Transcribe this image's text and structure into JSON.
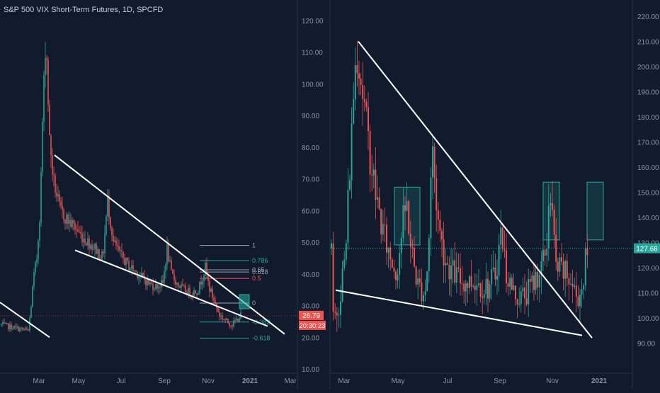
{
  "header": {
    "title": "S&P 500 VIX Short-Term Futures, 1D, SPCFD"
  },
  "colors": {
    "background": "#121b2e",
    "up": "#26a69a",
    "down": "#ef5350",
    "trendline": "#ffffff",
    "fib": "#9aa4b6",
    "fib_green": "#26a69a",
    "fib_red": "#ef5350",
    "price_line": "#26a69a",
    "axis_text": "#8a93a6",
    "label_red": "#ef5350",
    "box_fill": "rgba(38,166,154,0.18)",
    "box_border": "#26a69a"
  },
  "chart_data": [
    {
      "type": "candlestick",
      "title": "S&P 500 VIX Short-Term Futures, 1D, SPCFD",
      "x_ticks": [
        "Mar",
        "May",
        "Jul",
        "Sep",
        "Nov",
        "2021",
        "Mar"
      ],
      "y_ticks": [
        "120.00",
        "110.00",
        "100.00",
        "90.00",
        "80.00",
        "70.00",
        "60.00",
        "50.00",
        "40.00",
        "30.00",
        "20.00",
        "10.00"
      ],
      "ylim": [
        10,
        120
      ],
      "grid": false,
      "price_labels": {
        "last": "26.79",
        "countdown": "20:30:23"
      },
      "anchors": [
        [
          0,
          24
        ],
        [
          40,
          22
        ],
        [
          44,
          30
        ],
        [
          47,
          38
        ],
        [
          52,
          45
        ],
        [
          55,
          55
        ],
        [
          57,
          62
        ],
        [
          60,
          88
        ],
        [
          62,
          100
        ],
        [
          64,
          112
        ],
        [
          66,
          108
        ],
        [
          68,
          95
        ],
        [
          70,
          82
        ],
        [
          72,
          78
        ],
        [
          75,
          70
        ],
        [
          80,
          65
        ],
        [
          85,
          60
        ],
        [
          95,
          57
        ],
        [
          105,
          55
        ],
        [
          115,
          52
        ],
        [
          125,
          50
        ],
        [
          135,
          48
        ],
        [
          145,
          45
        ],
        [
          152,
          63
        ],
        [
          160,
          50
        ],
        [
          170,
          46
        ],
        [
          180,
          43
        ],
        [
          190,
          41
        ],
        [
          200,
          39
        ],
        [
          210,
          37
        ],
        [
          220,
          36
        ],
        [
          230,
          37
        ],
        [
          236,
          48
        ],
        [
          242,
          40
        ],
        [
          250,
          37
        ],
        [
          260,
          35
        ],
        [
          270,
          34
        ],
        [
          280,
          35
        ],
        [
          290,
          42
        ],
        [
          295,
          36
        ],
        [
          300,
          33
        ],
        [
          305,
          30
        ],
        [
          310,
          27
        ],
        [
          320,
          25
        ],
        [
          328,
          24
        ],
        [
          336,
          26
        ],
        [
          340,
          27
        ]
      ],
      "fib_levels": [
        {
          "label": "1",
          "value": 49
        },
        {
          "label": "0.786",
          "value": 44.2
        },
        {
          "label": "0.65",
          "value": 41.3
        },
        {
          "label": "0.618",
          "value": 40.6
        },
        {
          "label": "0.5",
          "value": 38.6
        },
        {
          "label": "0",
          "value": 30.8
        },
        {
          "label": "-0.382",
          "value": 24.8
        },
        {
          "label": "-0.618",
          "value": 19.7
        }
      ],
      "trendlines": [
        {
          "from": [
            0,
            31
          ],
          "to": [
            70,
            20
          ]
        },
        {
          "from": [
            77,
            77.5
          ],
          "to": [
            402,
            21
          ]
        },
        {
          "from": [
            106,
            47.5
          ],
          "to": [
            378,
            23.5
          ]
        }
      ],
      "annotations": [
        {
          "type": "box",
          "from": [
            338,
            33.5
          ],
          "to": [
            352,
            29
          ]
        }
      ]
    },
    {
      "type": "candlestick",
      "x_ticks": [
        "Mar",
        "May",
        "Jul",
        "Sep",
        "Nov",
        "2021"
      ],
      "y_ticks": [
        "220.00",
        "210.00",
        "200.00",
        "190.00",
        "180.00",
        "170.00",
        "160.00",
        "150.00",
        "140.00",
        "130.00",
        "120.00",
        "110.00",
        "100.00",
        "90.00"
      ],
      "ylim": [
        85,
        222
      ],
      "grid": false,
      "price_labels": {
        "last": "127.68"
      },
      "last_price": 127.68,
      "anchors": [
        [
          470,
          98
        ],
        [
          478,
          105
        ],
        [
          484,
          118
        ],
        [
          488,
          125
        ],
        [
          492,
          150
        ],
        [
          496,
          170
        ],
        [
          500,
          195
        ],
        [
          504,
          208
        ],
        [
          508,
          200
        ],
        [
          512,
          190
        ],
        [
          516,
          180
        ],
        [
          520,
          170
        ],
        [
          525,
          160
        ],
        [
          530,
          150
        ],
        [
          540,
          135
        ],
        [
          550,
          125
        ],
        [
          560,
          118
        ],
        [
          570,
          140
        ],
        [
          575,
          145
        ],
        [
          580,
          128
        ],
        [
          590,
          113
        ],
        [
          600,
          110
        ],
        [
          605,
          125
        ],
        [
          610,
          170
        ],
        [
          615,
          150
        ],
        [
          620,
          135
        ],
        [
          630,
          122
        ],
        [
          640,
          118
        ],
        [
          650,
          115
        ],
        [
          660,
          114
        ],
        [
          670,
          115
        ],
        [
          680,
          113
        ],
        [
          690,
          112
        ],
        [
          700,
          118
        ],
        [
          708,
          135
        ],
        [
          715,
          118
        ],
        [
          725,
          110
        ],
        [
          735,
          108
        ],
        [
          745,
          110
        ],
        [
          755,
          115
        ],
        [
          765,
          120
        ],
        [
          772,
          128
        ],
        [
          775,
          150
        ],
        [
          780,
          140
        ],
        [
          785,
          120
        ],
        [
          795,
          118
        ],
        [
          805,
          115
        ],
        [
          815,
          108
        ],
        [
          822,
          112
        ],
        [
          828,
          125
        ],
        [
          830,
          127.68
        ]
      ],
      "trendlines": [
        {
          "from": [
            506,
            210
          ],
          "to": [
            836,
            92
          ]
        },
        {
          "from": [
            474,
            111
          ],
          "to": [
            822,
            93
          ]
        }
      ],
      "annotations": [
        {
          "type": "box",
          "from": [
            557,
            152
          ],
          "to": [
            593,
            129
          ]
        },
        {
          "type": "box",
          "from": [
            767,
            154
          ],
          "to": [
            790,
            131
          ]
        },
        {
          "type": "box",
          "from": [
            829,
            154
          ],
          "to": [
            852,
            131
          ]
        }
      ]
    }
  ]
}
